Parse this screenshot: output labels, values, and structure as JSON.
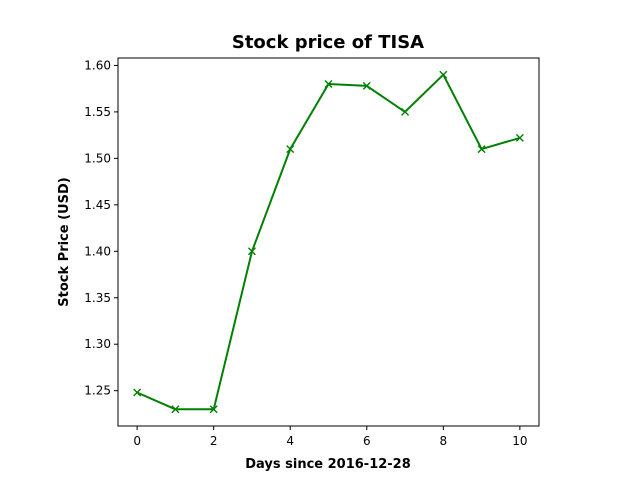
{
  "chart_data": {
    "type": "line",
    "title": "Stock price of TISA",
    "xlabel": "Days since 2016-12-28",
    "ylabel": "Stock Price (USD)",
    "x": [
      0,
      1,
      2,
      3,
      4,
      5,
      6,
      7,
      8,
      9,
      10
    ],
    "series": [
      {
        "values": [
          1.248,
          1.23,
          1.23,
          1.4,
          1.51,
          1.58,
          1.578,
          1.55,
          1.59,
          1.51,
          1.522
        ],
        "color": "#008000",
        "marker": "x"
      }
    ],
    "xlim": [
      -0.5,
      10.5
    ],
    "ylim": [
      1.212,
      1.608
    ],
    "xticks": [
      0,
      2,
      4,
      6,
      8,
      10
    ],
    "yticks": [
      "1.25",
      "1.30",
      "1.35",
      "1.40",
      "1.45",
      "1.50",
      "1.55",
      "1.60"
    ],
    "grid": false,
    "legend": false
  }
}
